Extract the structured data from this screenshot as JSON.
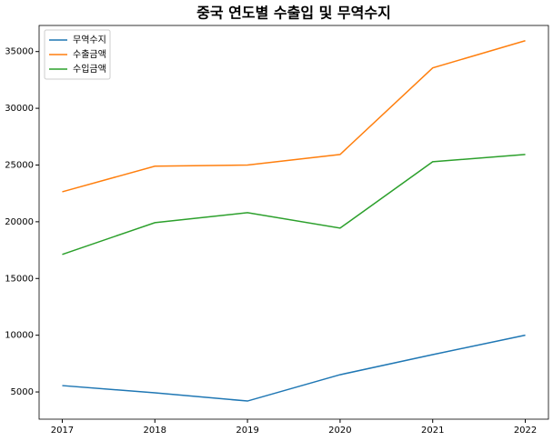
{
  "chart_data": {
    "type": "line",
    "title": "중국 연도별 수출입 및 무역수지",
    "x": [
      2017,
      2018,
      2019,
      2020,
      2021,
      2022
    ],
    "series": [
      {
        "name": "무역수지",
        "color": "#1f77b4",
        "values": [
          5560,
          4920,
          4200,
          6520,
          8290,
          10000
        ]
      },
      {
        "name": "수출금액",
        "color": "#ff7f0e",
        "values": [
          22640,
          24900,
          25000,
          25930,
          33560,
          35960
        ]
      },
      {
        "name": "수입금액",
        "color": "#2ca02c",
        "values": [
          17120,
          19920,
          20800,
          19440,
          25290,
          25930
        ]
      }
    ],
    "xlim": [
      2016.75,
      2022.25
    ],
    "xticks": [
      2017,
      2018,
      2019,
      2020,
      2021,
      2022
    ],
    "ylim": [
      2600,
      37300
    ],
    "yticks": [
      5000,
      10000,
      15000,
      20000,
      25000,
      30000,
      35000
    ],
    "grid": false,
    "legend": "upper left"
  }
}
